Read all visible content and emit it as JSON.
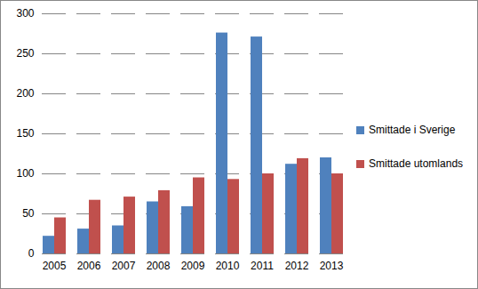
{
  "chart_data": {
    "type": "bar",
    "categories": [
      "2005",
      "2006",
      "2007",
      "2008",
      "2009",
      "2010",
      "2011",
      "2012",
      "2013"
    ],
    "series": [
      {
        "name": "Smittade i Sverige",
        "color": "#4f81bd",
        "values": [
          22,
          31,
          35,
          65,
          59,
          276,
          271,
          112,
          120
        ]
      },
      {
        "name": "Smittade utomlands",
        "color": "#c0504d",
        "values": [
          45,
          67,
          71,
          79,
          95,
          93,
          100,
          119,
          100
        ]
      }
    ],
    "ylim": [
      0,
      300
    ],
    "yticks": [
      0,
      50,
      100,
      150,
      200,
      250,
      300
    ],
    "grid": true,
    "legend": "right"
  }
}
